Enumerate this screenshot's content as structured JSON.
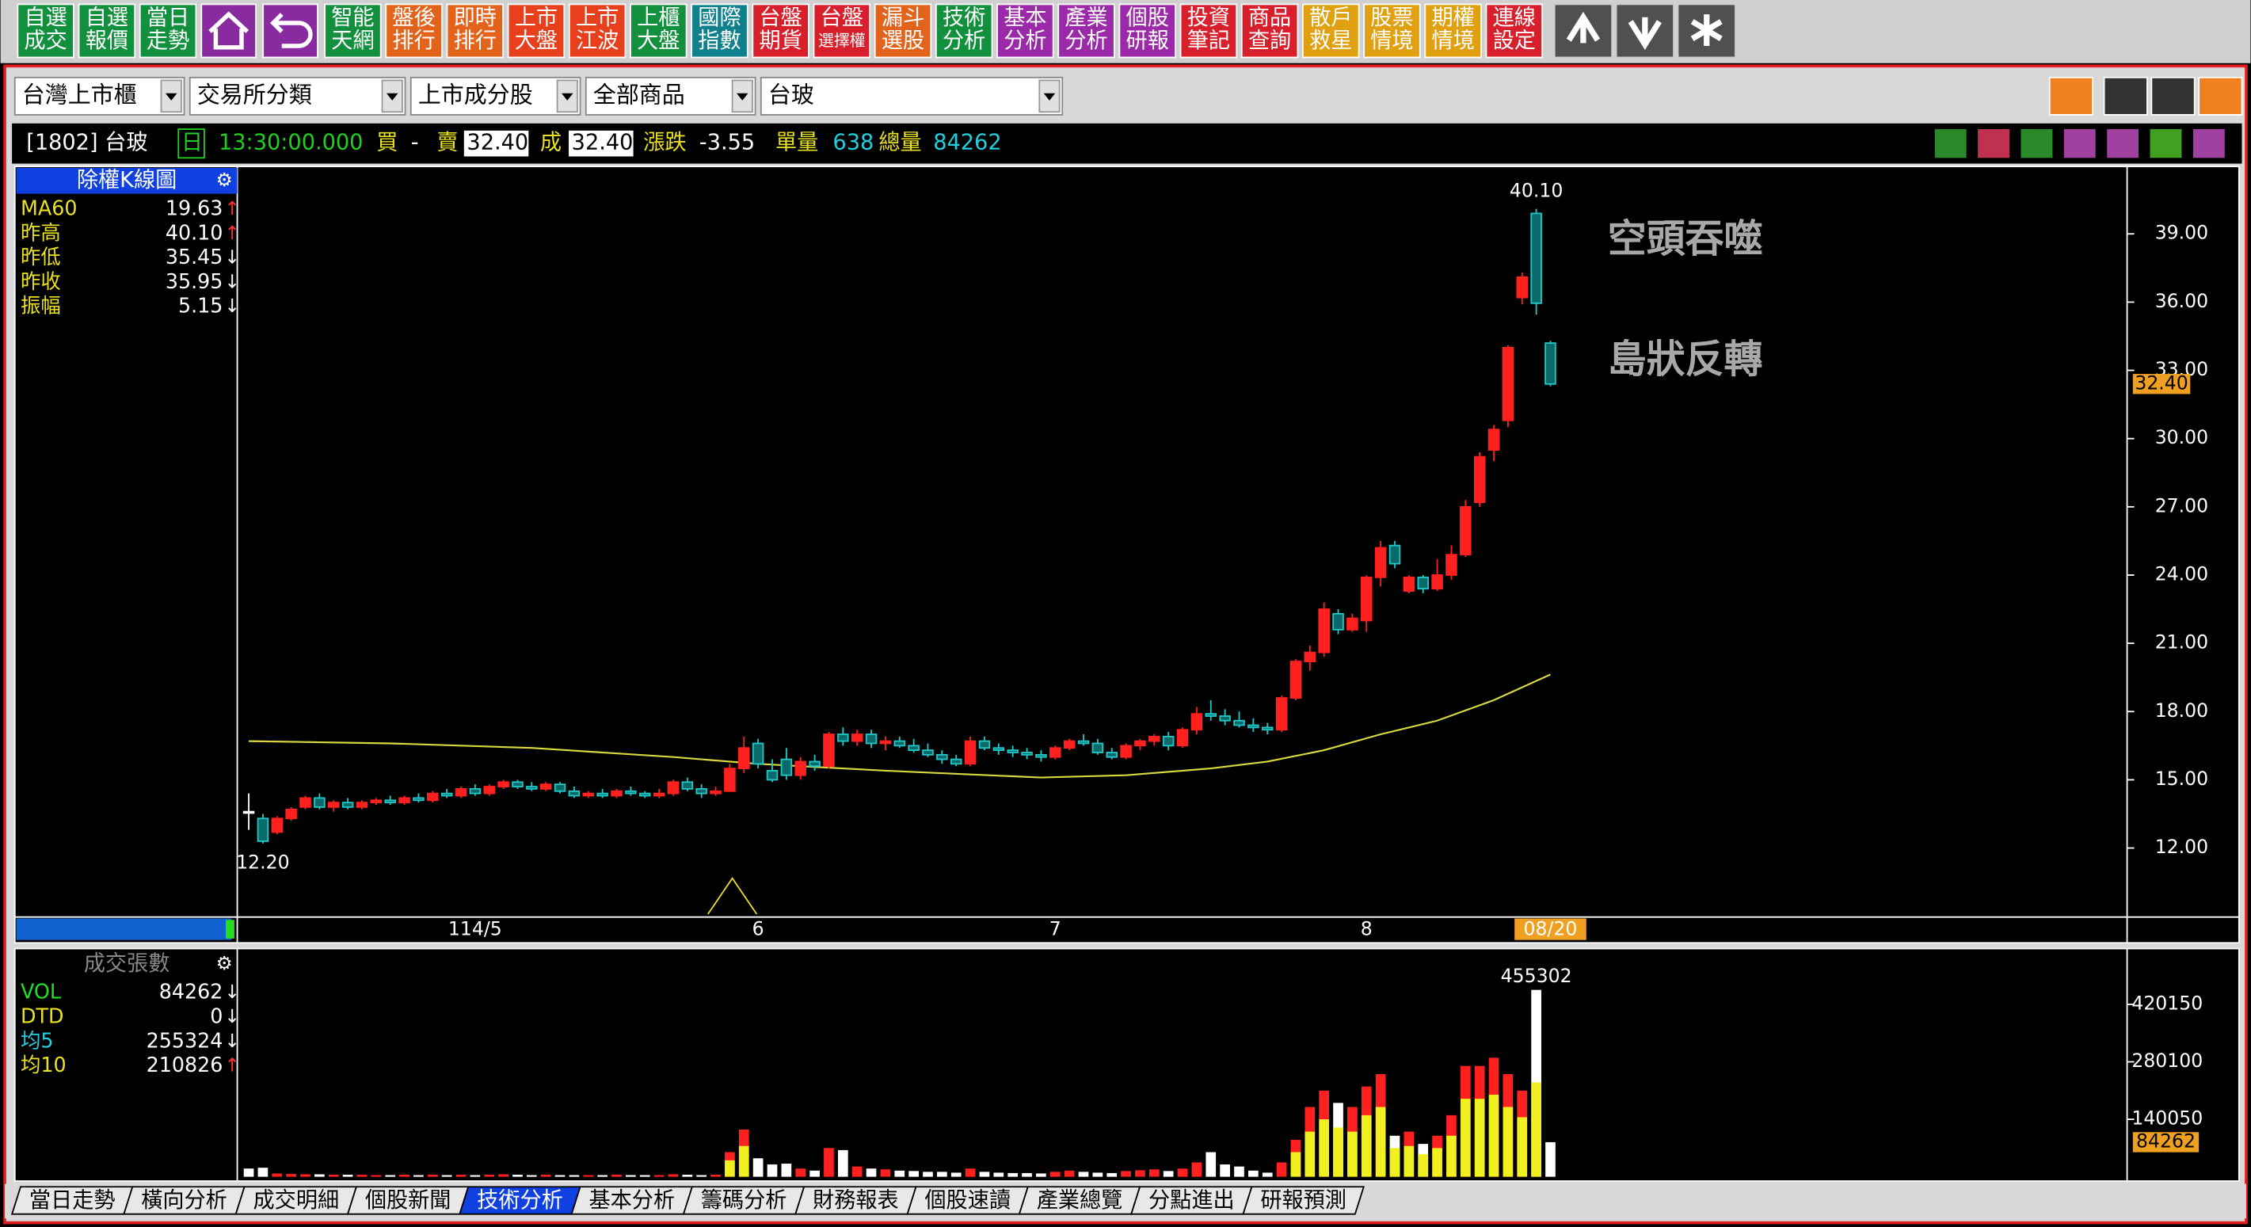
{
  "toolbar": [
    {
      "lines": [
        "自選",
        "成交"
      ],
      "color": "#12903e"
    },
    {
      "lines": [
        "自選",
        "報價"
      ],
      "color": "#12903e"
    },
    {
      "lines": [
        "當日",
        "走勢"
      ],
      "color": "#12903e"
    },
    {
      "lines": [
        "智能",
        "天網"
      ],
      "color": "#12903e"
    },
    {
      "lines": [
        "盤後",
        "排行"
      ],
      "color": "#e2641c"
    },
    {
      "lines": [
        "即時",
        "排行"
      ],
      "color": "#e2641c"
    },
    {
      "lines": [
        "上市",
        "大盤"
      ],
      "color": "#e8401c"
    },
    {
      "lines": [
        "上市",
        "江波"
      ],
      "color": "#e8401c"
    },
    {
      "lines": [
        "上櫃",
        "大盤"
      ],
      "color": "#12903e"
    },
    {
      "lines": [
        "國際",
        "指數"
      ],
      "color": "#10808c"
    },
    {
      "lines": [
        "台盤",
        "期貨"
      ],
      "color": "#d8202c"
    },
    {
      "lines": [
        "台盤",
        "選擇權"
      ],
      "color": "#d8202c"
    },
    {
      "lines": [
        "漏斗",
        "選股"
      ],
      "color": "#e2641c"
    },
    {
      "lines": [
        "技術",
        "分析"
      ],
      "color": "#12903e"
    },
    {
      "lines": [
        "基本",
        "分析"
      ],
      "color": "#9a2aa8"
    },
    {
      "lines": [
        "產業",
        "分析"
      ],
      "color": "#9a2aa8"
    },
    {
      "lines": [
        "個股",
        "研報"
      ],
      "color": "#9a2aa8"
    },
    {
      "lines": [
        "投資",
        "筆記"
      ],
      "color": "#d8202c"
    },
    {
      "lines": [
        "商品",
        "查詢"
      ],
      "color": "#d8202c"
    },
    {
      "lines": [
        "散戶",
        "救星"
      ],
      "color": "#e0a010"
    },
    {
      "lines": [
        "股票",
        "情境"
      ],
      "color": "#e0a010"
    },
    {
      "lines": [
        "期權",
        "情境"
      ],
      "color": "#e0a010"
    },
    {
      "lines": [
        "連線",
        "設定"
      ],
      "color": "#d8202c"
    }
  ],
  "selectors": [
    "台灣上市櫃",
    "交易所分類",
    "上市成分股",
    "全部商品",
    "台玻"
  ],
  "quote": {
    "symbol": "[1802] 台玻",
    "period": "日",
    "time": "13:30:00.000",
    "buy_label": "買",
    "buy": "-",
    "sell_label": "賣",
    "sell": "32.40",
    "deal_label": "成",
    "deal": "32.40",
    "change_label": "漲跌",
    "change": "-3.55",
    "lot_label": "單量",
    "lot": "638",
    "total_label": "總量",
    "total": "84262"
  },
  "chart_data": [
    {
      "type": "candlestick",
      "title": "除權K線圖",
      "stats": [
        {
          "name": "MA60",
          "value": "19.63",
          "arrow": "↑"
        },
        {
          "name": "昨高",
          "value": "40.10",
          "arrow": "↑"
        },
        {
          "name": "昨低",
          "value": "35.45",
          "arrow": "↓"
        },
        {
          "name": "昨收",
          "value": "35.95",
          "arrow": "↓"
        },
        {
          "name": "振幅",
          "value": "5.15",
          "arrow": "↓"
        }
      ],
      "categories": [
        null,
        null,
        null,
        null,
        null,
        null,
        null,
        null,
        null,
        null,
        null,
        null,
        null,
        null,
        null,
        null,
        "114/5",
        null,
        null,
        null,
        null,
        null,
        null,
        null,
        null,
        null,
        null,
        null,
        null,
        null,
        null,
        null,
        null,
        null,
        null,
        null,
        "6",
        null,
        null,
        null,
        null,
        null,
        null,
        null,
        null,
        null,
        null,
        null,
        null,
        null,
        null,
        null,
        null,
        null,
        null,
        null,
        null,
        "7",
        null,
        null,
        null,
        null,
        null,
        null,
        null,
        null,
        null,
        null,
        null,
        null,
        null,
        null,
        null,
        null,
        null,
        null,
        null,
        null,
        null,
        "8",
        null,
        null,
        null,
        null,
        null,
        null,
        null,
        null,
        null,
        null,
        null,
        null,
        "08/20"
      ],
      "open": [
        13.6,
        13.3,
        12.7,
        13.3,
        13.8,
        14.2,
        13.8,
        14.0,
        13.8,
        14.0,
        14.1,
        14.0,
        14.2,
        14.1,
        14.4,
        14.3,
        14.6,
        14.4,
        14.7,
        14.9,
        14.7,
        14.6,
        14.8,
        14.5,
        14.3,
        14.4,
        14.3,
        14.5,
        14.4,
        14.3,
        14.4,
        14.9,
        14.6,
        14.4,
        14.5,
        15.5,
        16.6,
        15.4,
        15.9,
        15.2,
        15.8,
        15.6,
        17.0,
        16.7,
        17.0,
        16.6,
        16.7,
        16.5,
        16.3,
        16.1,
        15.9,
        15.7,
        16.7,
        16.4,
        16.3,
        16.2,
        16.1,
        16.0,
        16.4,
        16.7,
        16.6,
        16.2,
        16.0,
        16.5,
        16.7,
        16.9,
        16.5,
        17.2,
        17.9,
        17.8,
        17.6,
        17.4,
        17.3,
        17.2,
        18.6,
        20.2,
        20.6,
        22.3,
        21.6,
        22.0,
        23.9,
        25.3,
        23.3,
        23.9,
        23.4,
        24.0,
        24.9,
        27.2,
        29.5,
        30.8,
        36.2,
        39.9,
        34.2
      ],
      "high": [
        14.4,
        13.5,
        13.4,
        13.8,
        14.3,
        14.4,
        14.1,
        14.2,
        14.1,
        14.2,
        14.3,
        14.3,
        14.4,
        14.5,
        14.6,
        14.7,
        14.8,
        14.8,
        15.0,
        15.0,
        14.9,
        14.9,
        14.9,
        14.7,
        14.5,
        14.6,
        14.6,
        14.7,
        14.5,
        14.6,
        15.0,
        15.1,
        14.8,
        14.7,
        15.7,
        16.9,
        16.8,
        15.9,
        16.4,
        16.0,
        16.1,
        17.1,
        17.3,
        17.2,
        17.2,
        16.9,
        16.9,
        16.8,
        16.6,
        16.3,
        16.1,
        16.9,
        16.9,
        16.6,
        16.5,
        16.4,
        16.3,
        16.5,
        16.8,
        17.0,
        16.8,
        16.4,
        16.6,
        16.8,
        17.0,
        17.1,
        17.3,
        18.2,
        18.5,
        18.1,
        18.0,
        17.7,
        17.5,
        18.7,
        20.3,
        20.9,
        22.8,
        22.5,
        22.3,
        24.0,
        25.5,
        25.5,
        24.0,
        24.0,
        24.7,
        25.3,
        27.3,
        29.4,
        30.6,
        34.1,
        37.3,
        40.1,
        34.3
      ],
      "low": [
        12.8,
        12.2,
        12.6,
        13.2,
        13.7,
        13.7,
        13.6,
        13.7,
        13.7,
        13.9,
        13.9,
        13.9,
        14.0,
        14.0,
        14.2,
        14.2,
        14.3,
        14.3,
        14.6,
        14.6,
        14.5,
        14.5,
        14.4,
        14.2,
        14.2,
        14.2,
        14.2,
        14.3,
        14.2,
        14.2,
        14.3,
        14.5,
        14.2,
        14.3,
        14.5,
        15.3,
        15.5,
        14.9,
        15.0,
        15.0,
        15.4,
        15.5,
        16.5,
        16.5,
        16.4,
        16.3,
        16.4,
        16.2,
        16.0,
        15.7,
        15.6,
        15.6,
        16.3,
        16.1,
        16.0,
        15.9,
        15.8,
        15.9,
        16.3,
        16.5,
        16.1,
        15.9,
        15.9,
        16.3,
        16.5,
        16.3,
        16.4,
        17.0,
        17.6,
        17.4,
        17.3,
        17.1,
        17.0,
        17.1,
        18.5,
        19.8,
        20.4,
        21.4,
        21.5,
        21.5,
        23.5,
        24.3,
        23.2,
        23.2,
        23.3,
        23.8,
        24.8,
        27.0,
        29.0,
        30.5,
        35.9,
        35.45,
        32.3
      ],
      "close": [
        13.6,
        12.3,
        13.3,
        13.7,
        14.2,
        13.8,
        14.0,
        13.8,
        14.0,
        14.1,
        14.0,
        14.2,
        14.1,
        14.4,
        14.3,
        14.6,
        14.4,
        14.7,
        14.9,
        14.7,
        14.6,
        14.8,
        14.5,
        14.3,
        14.4,
        14.3,
        14.5,
        14.4,
        14.3,
        14.4,
        14.9,
        14.6,
        14.4,
        14.5,
        15.5,
        16.4,
        15.7,
        15.0,
        15.2,
        15.8,
        15.6,
        17.0,
        16.7,
        17.0,
        16.6,
        16.7,
        16.5,
        16.3,
        16.1,
        15.9,
        15.7,
        16.7,
        16.4,
        16.3,
        16.2,
        16.1,
        16.0,
        16.4,
        16.7,
        16.6,
        16.2,
        16.0,
        16.5,
        16.7,
        16.9,
        16.5,
        17.2,
        17.9,
        17.8,
        17.6,
        17.4,
        17.3,
        17.2,
        18.6,
        20.2,
        20.6,
        22.5,
        21.6,
        22.1,
        23.9,
        25.2,
        24.5,
        23.9,
        23.4,
        24.0,
        24.9,
        27.0,
        29.2,
        30.4,
        34.0,
        37.1,
        35.95,
        32.4
      ],
      "ma60": {
        "index": [
          0,
          10,
          20,
          30,
          36,
          45,
          56,
          62,
          68,
          72,
          76,
          80,
          84,
          88,
          92
        ],
        "values": [
          16.7,
          16.6,
          16.4,
          16.0,
          15.7,
          15.4,
          15.1,
          15.2,
          15.5,
          15.8,
          16.3,
          17.0,
          17.6,
          18.5,
          19.63
        ],
        "color": "#d8d840"
      },
      "up_color": "#ff2020",
      "down_color": "#20c8c8",
      "flat_color": "#ffffff",
      "ylim": [
        9.03,
        41.9
      ],
      "yticks": [
        {
          "value": 12,
          "label": "12.00"
        },
        {
          "value": 15,
          "label": "15.00"
        },
        {
          "value": 18,
          "label": "18.00"
        },
        {
          "value": 21,
          "label": "21.00"
        },
        {
          "value": 24,
          "label": "24.00"
        },
        {
          "value": 27,
          "label": "27.00"
        },
        {
          "value": 30,
          "label": "30.00"
        },
        {
          "value": 33,
          "label": "33.00"
        },
        {
          "value": 36,
          "label": "36.00"
        },
        {
          "value": 39,
          "label": "39.00"
        }
      ],
      "current": {
        "value": 32.4,
        "label": "32.40"
      },
      "max_label": {
        "value": 40.1,
        "label": "40.10"
      },
      "min_label": {
        "value": 12.2,
        "label": "12.20"
      },
      "annotations": [
        "空頭吞噬",
        "島狀反轉"
      ]
    },
    {
      "type": "bar",
      "title": "成交張數",
      "stats": [
        {
          "name": "VOL",
          "value": "84262",
          "arrow": "↓",
          "color": "#20e020"
        },
        {
          "name": "DTD",
          "value": "0",
          "arrow": "↓",
          "color": "#e8e020"
        },
        {
          "name": "均5",
          "value": "255324",
          "arrow": "↓",
          "color": "#20d0e0"
        },
        {
          "name": "均10",
          "value": "210826",
          "arrow": "↑",
          "color": "#e8e020"
        }
      ],
      "values": [
        20000,
        22000,
        8000,
        7000,
        6000,
        6000,
        5000,
        5000,
        5000,
        4000,
        4000,
        5000,
        4000,
        5000,
        4000,
        5000,
        4000,
        5000,
        6000,
        5000,
        4000,
        5000,
        4000,
        4000,
        4000,
        4000,
        5000,
        4000,
        4000,
        4000,
        6000,
        5000,
        4000,
        5000,
        60000,
        115000,
        45000,
        30000,
        32000,
        20000,
        15000,
        70000,
        65000,
        25000,
        20000,
        18000,
        15000,
        14000,
        12000,
        12000,
        10000,
        20000,
        12000,
        10000,
        9000,
        9000,
        8000,
        12000,
        15000,
        12000,
        10000,
        9000,
        14000,
        16000,
        18000,
        14000,
        20000,
        35000,
        60000,
        30000,
        25000,
        15000,
        10000,
        35000,
        90000,
        170000,
        210000,
        180000,
        170000,
        220000,
        250000,
        100000,
        110000,
        80000,
        100000,
        150000,
        270000,
        270000,
        290000,
        250000,
        210000,
        455302,
        84262
      ],
      "inner_values": [
        null,
        null,
        null,
        null,
        null,
        null,
        null,
        null,
        null,
        null,
        null,
        null,
        null,
        null,
        null,
        null,
        null,
        null,
        null,
        null,
        null,
        null,
        null,
        null,
        null,
        null,
        null,
        null,
        null,
        null,
        null,
        null,
        null,
        null,
        40000,
        75000,
        null,
        null,
        null,
        null,
        null,
        null,
        null,
        null,
        null,
        null,
        null,
        null,
        null,
        null,
        null,
        null,
        null,
        null,
        null,
        null,
        null,
        null,
        null,
        null,
        null,
        null,
        null,
        null,
        null,
        null,
        null,
        null,
        null,
        null,
        null,
        null,
        null,
        null,
        60000,
        110000,
        140000,
        120000,
        110000,
        150000,
        170000,
        70000,
        75000,
        55000,
        70000,
        100000,
        190000,
        190000,
        200000,
        170000,
        145000,
        230000,
        null
      ],
      "inner_color": "#f0f020",
      "ylim": [
        0,
        542000
      ],
      "yticks": [
        140050,
        280100,
        420150
      ],
      "current": 84262,
      "max_label": 455302
    }
  ],
  "tabs": [
    "當日走勢",
    "橫向分析",
    "成交明細",
    "個股新聞",
    "技術分析",
    "基本分析",
    "籌碼分析",
    "財務報表",
    "個股速讀",
    "產業總覽",
    "分點進出",
    "研報預測"
  ],
  "active_tab": 4
}
